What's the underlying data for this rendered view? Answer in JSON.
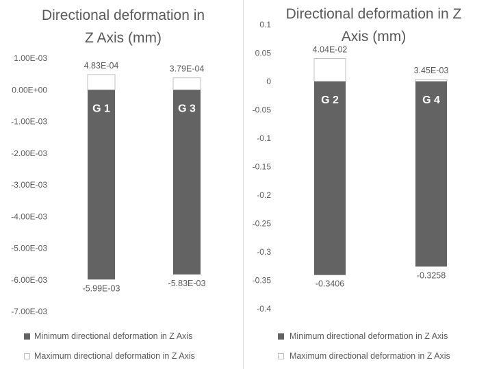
{
  "colors": {
    "min_bar": "#636363",
    "max_bar": "#ffffff",
    "max_bar_border": "#bfbfbf",
    "text": "#595959",
    "gridline": "#d9d9d9",
    "bar_label_on_bar": "#ffffff"
  },
  "chart_data": [
    {
      "type": "bar",
      "title": "Directional deformation in Z Axis (mm)",
      "title_lines": [
        "Directional deformation in",
        "Z Axis (mm)"
      ],
      "categories": [
        "G 1",
        "G 3"
      ],
      "series": [
        {
          "name": "Minimum directional deformation in Z Axis",
          "values": [
            -0.00599,
            -0.00583
          ],
          "labels": [
            "-5.99E-03",
            "-5.83E-03"
          ]
        },
        {
          "name": "Maximum directional deformation in Z Axis",
          "values": [
            0.000483,
            0.000379
          ],
          "labels": [
            "4.83E-04",
            "3.79E-04"
          ]
        }
      ],
      "stacked": true,
      "ylim": [
        -0.007,
        0.001
      ],
      "yticks": [
        0.001,
        0,
        -0.001,
        -0.002,
        -0.003,
        -0.004,
        -0.005,
        -0.006,
        -0.007
      ],
      "ytick_labels": [
        "1.00E-03",
        "0.00E+00",
        "-1.00E-03",
        "-2.00E-03",
        "-3.00E-03",
        "-4.00E-03",
        "-5.00E-03",
        "-6.00E-03",
        "-7.00E-03"
      ],
      "grid": false,
      "legend_position": "bottom"
    },
    {
      "type": "bar",
      "title": "Directional deformation in Z Axis (mm)",
      "title_lines": [
        "Directional deformation in Z",
        "Axis (mm)"
      ],
      "categories": [
        "G 2",
        "G 4"
      ],
      "series": [
        {
          "name": "Minimum directional deformation in Z Axis",
          "values": [
            -0.3406,
            -0.3258
          ],
          "labels": [
            "-0.3406",
            "-0.3258"
          ]
        },
        {
          "name": "Maximum directional deformation in Z Axis",
          "values": [
            0.0404,
            0.00345
          ],
          "labels": [
            "4.04E-02",
            "3.45E-03"
          ]
        }
      ],
      "stacked": true,
      "ylim": [
        -0.4,
        0.1
      ],
      "yticks": [
        0.1,
        0.05,
        0,
        -0.05,
        -0.1,
        -0.15,
        -0.2,
        -0.25,
        -0.3,
        -0.35,
        -0.4
      ],
      "ytick_labels": [
        "0.1",
        "0.05",
        "0",
        "-0.05",
        "-0.1",
        "-0.15",
        "-0.2",
        "-0.25",
        "-0.3",
        "-0.35",
        "-0.4"
      ],
      "grid": false,
      "legend_position": "bottom"
    }
  ]
}
